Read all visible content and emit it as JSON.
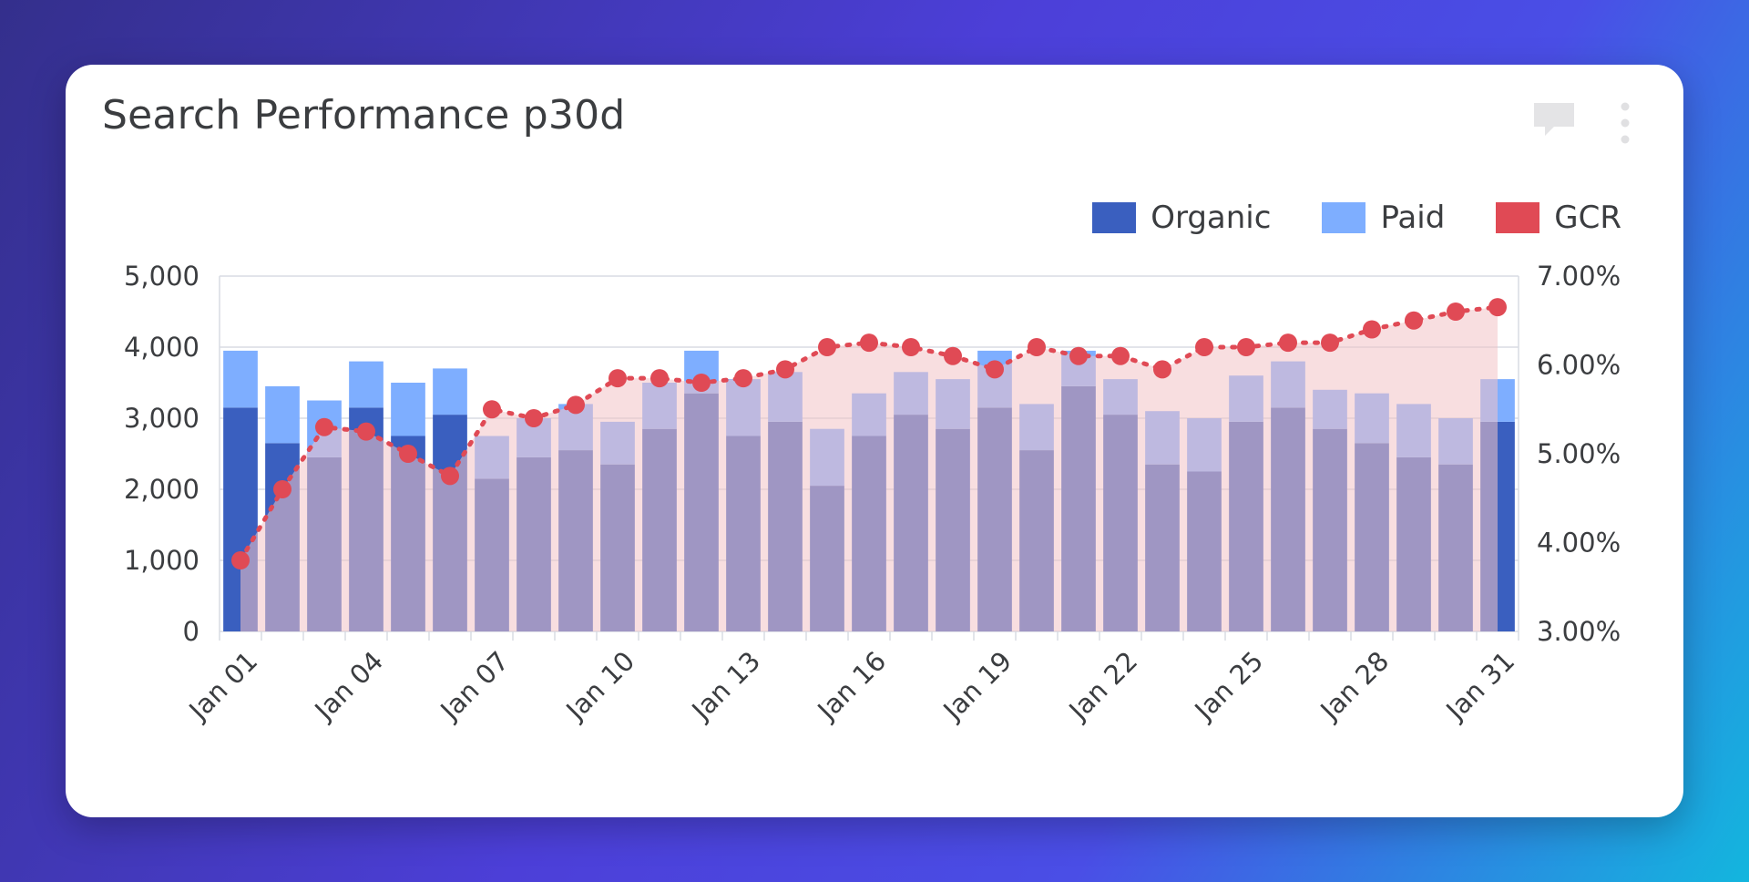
{
  "card": {
    "title": "Search Performance p30d",
    "icons": {
      "comment": "comment-icon",
      "menu": "more-vertical-icon"
    }
  },
  "colors": {
    "organic": "#3a5fbf",
    "paid": "#7eaeff",
    "gcr": "#e04a55",
    "gcr_fill": "#f3c3c6",
    "grid": "#d8dce3",
    "text": "#3b3d40"
  },
  "chart_data": {
    "type": "bar",
    "title": "Search Performance p30d",
    "categories": [
      "Jan 01",
      "Jan 02",
      "Jan 03",
      "Jan 04",
      "Jan 05",
      "Jan 06",
      "Jan 07",
      "Jan 08",
      "Jan 09",
      "Jan 10",
      "Jan 11",
      "Jan 12",
      "Jan 13",
      "Jan 14",
      "Jan 15",
      "Jan 16",
      "Jan 17",
      "Jan 18",
      "Jan 19",
      "Jan 20",
      "Jan 21",
      "Jan 22",
      "Jan 23",
      "Jan 24",
      "Jan 25",
      "Jan 26",
      "Jan 27",
      "Jan 28",
      "Jan 29",
      "Jan 30",
      "Jan 31"
    ],
    "x_tick_labels": [
      "Jan 01",
      "Jan 04",
      "Jan 07",
      "Jan 10",
      "Jan 13",
      "Jan 16",
      "Jan 19",
      "Jan 22",
      "Jan 25",
      "Jan 28",
      "Jan 31"
    ],
    "stacked": true,
    "series": [
      {
        "name": "Organic",
        "type": "bar",
        "axis": "left",
        "values": [
          3150,
          2650,
          2450,
          3150,
          2750,
          3050,
          2150,
          2450,
          2550,
          2350,
          2850,
          3350,
          2750,
          2950,
          2050,
          2750,
          3050,
          2850,
          3150,
          2550,
          3450,
          3050,
          2350,
          2250,
          2950,
          3150,
          2850,
          2650,
          2450,
          2350,
          2950
        ]
      },
      {
        "name": "Paid",
        "type": "bar",
        "axis": "left",
        "values": [
          800,
          800,
          800,
          650,
          750,
          650,
          600,
          550,
          650,
          600,
          650,
          600,
          800,
          700,
          800,
          600,
          600,
          700,
          800,
          650,
          500,
          500,
          750,
          750,
          650,
          650,
          550,
          700,
          750,
          650,
          600
        ]
      },
      {
        "name": "GCR",
        "type": "line",
        "axis": "right",
        "unit": "%",
        "values": [
          3.8,
          4.6,
          5.3,
          5.25,
          5.0,
          4.75,
          5.5,
          5.4,
          5.55,
          5.85,
          5.85,
          5.8,
          5.85,
          5.95,
          6.2,
          6.25,
          6.2,
          6.1,
          5.95,
          6.2,
          6.1,
          6.1,
          5.95,
          6.2,
          6.2,
          6.25,
          6.25,
          6.4,
          6.5,
          6.6,
          6.65
        ]
      }
    ],
    "y_left": {
      "min": 0,
      "max": 5000,
      "ticks": [
        "0",
        "1,000",
        "2,000",
        "3,000",
        "4,000",
        "5,000"
      ]
    },
    "y_right": {
      "min": 3,
      "max": 7,
      "ticks": [
        "3.00%",
        "4.00%",
        "5.00%",
        "6.00%",
        "7.00%"
      ]
    },
    "legend": {
      "position": "top-right",
      "items": [
        {
          "label": "Organic",
          "color": "#3a5fbf"
        },
        {
          "label": "Paid",
          "color": "#7eaeff"
        },
        {
          "label": "GCR",
          "color": "#e04a55"
        }
      ]
    },
    "grid": true
  }
}
